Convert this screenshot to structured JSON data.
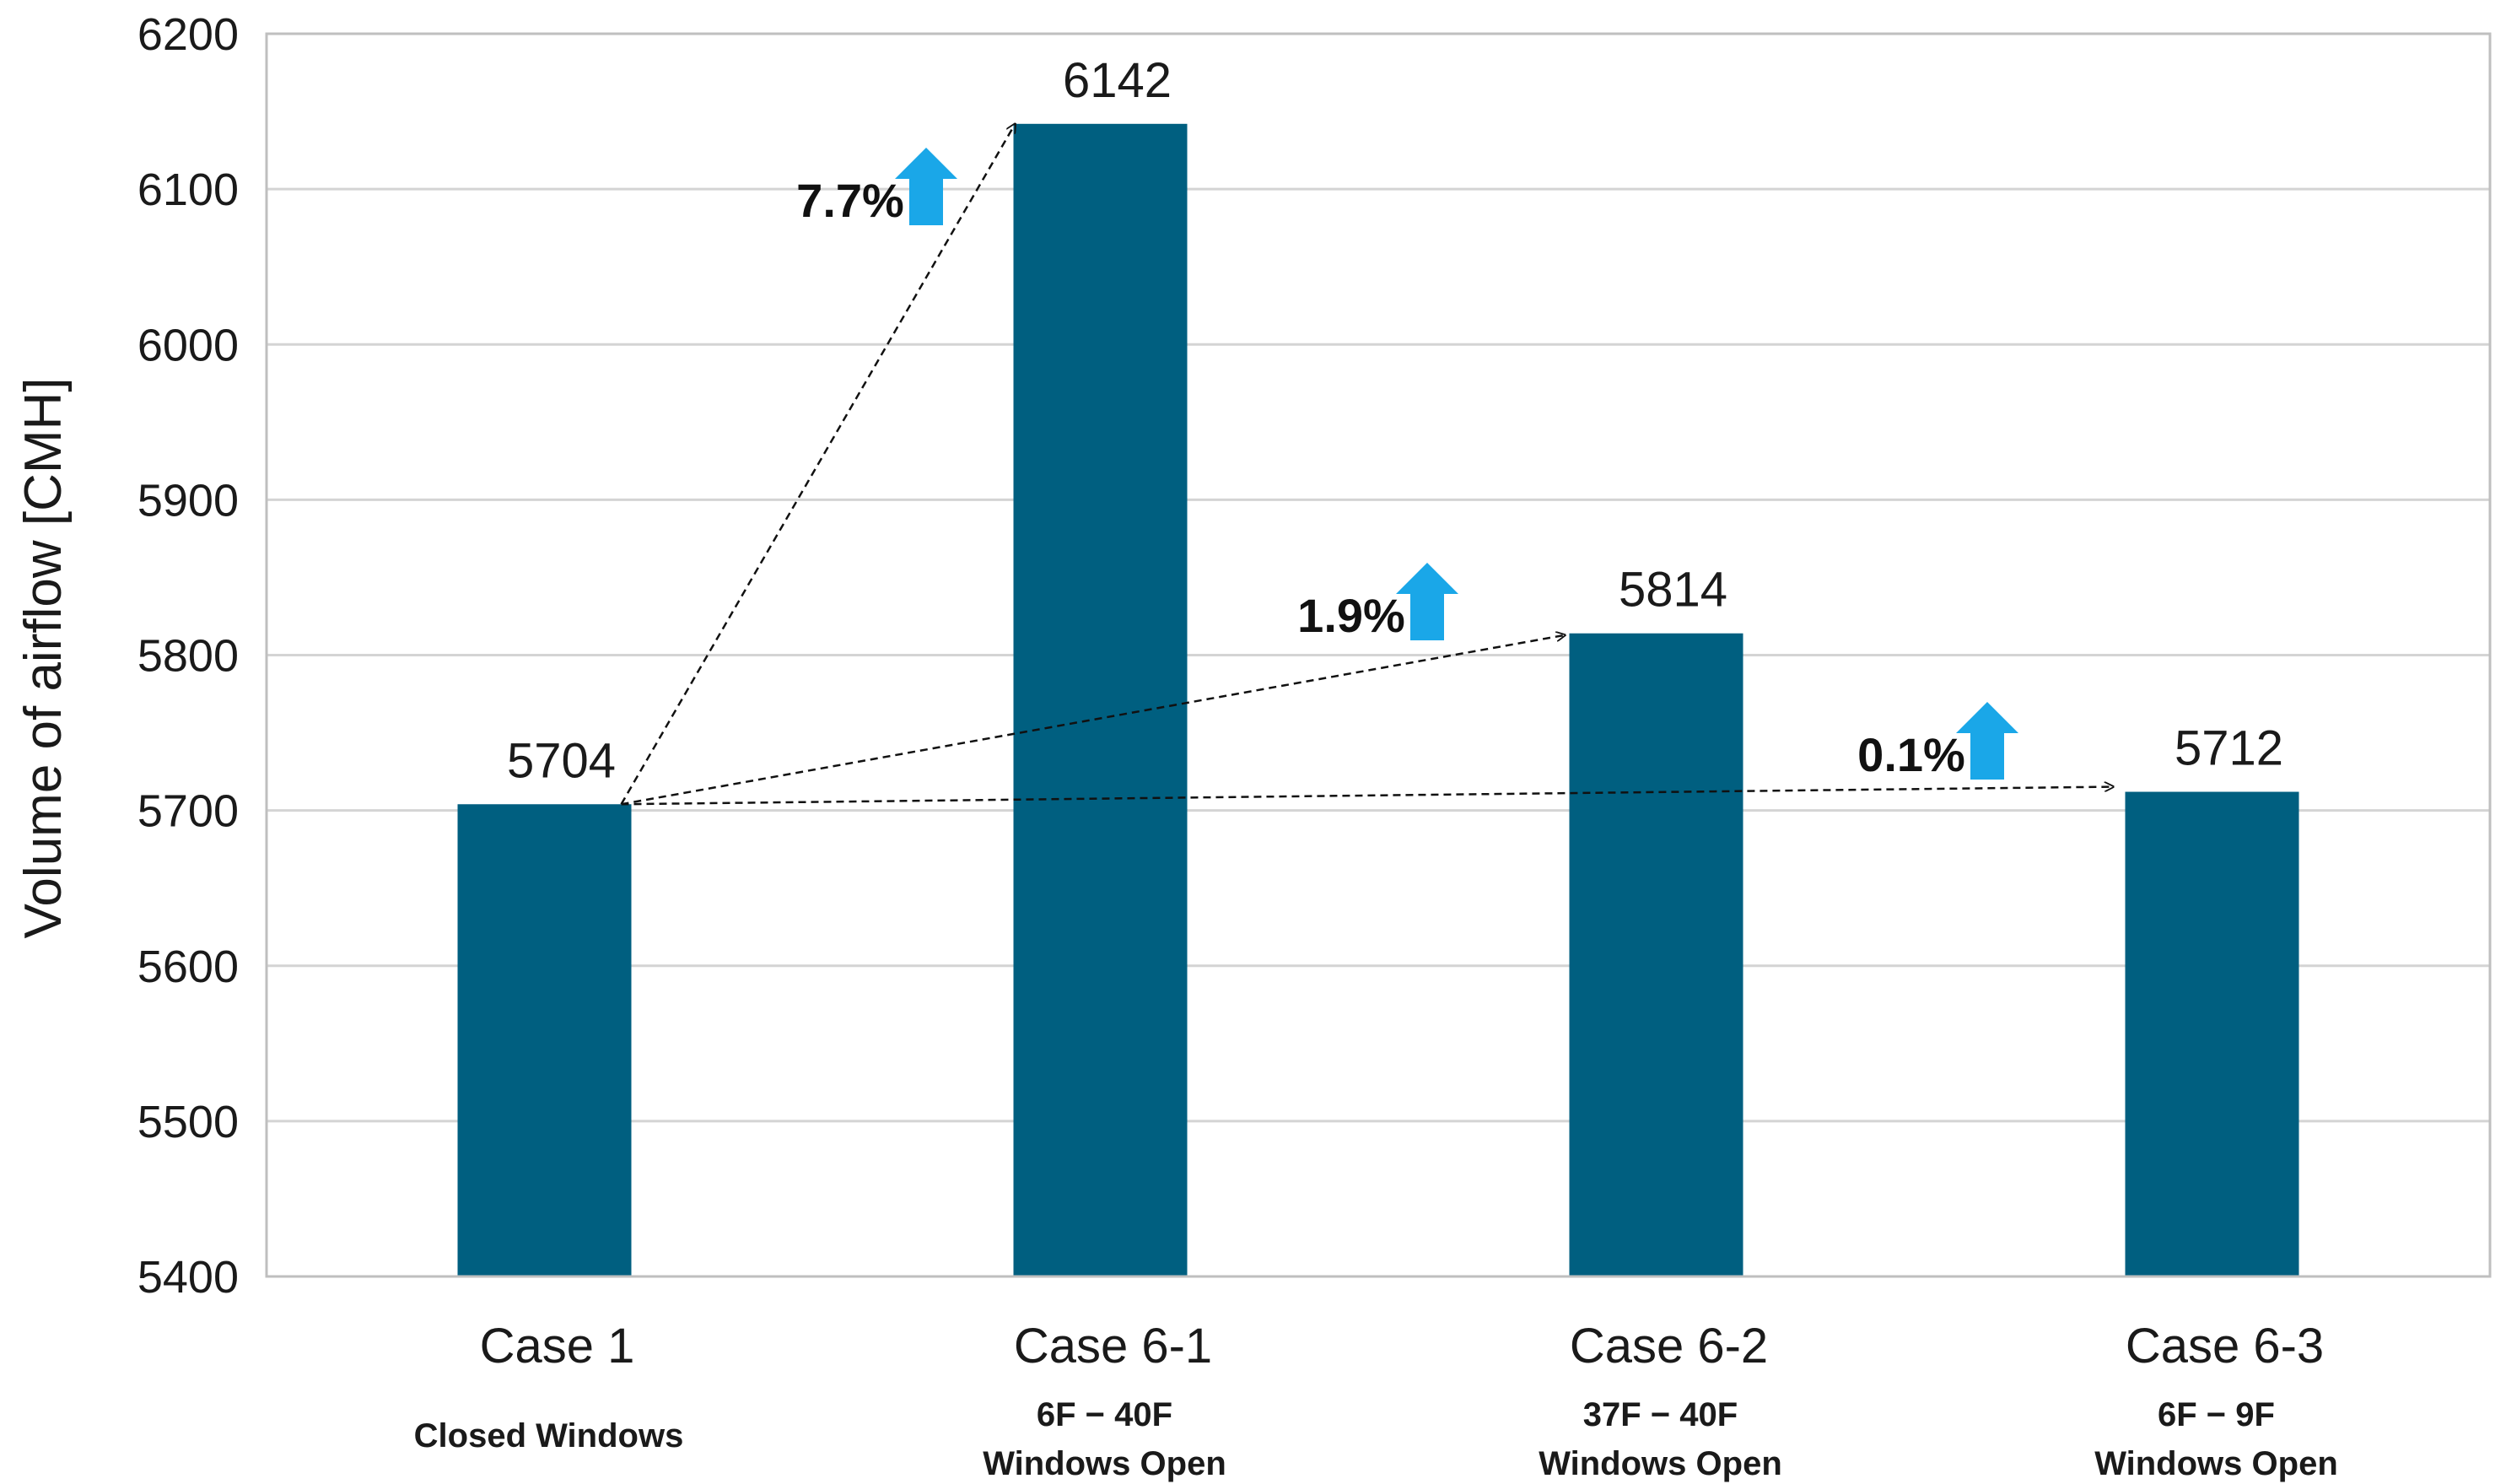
{
  "chart_data": {
    "type": "bar",
    "ylabel": "Volume of airflow [CMH]",
    "xlabel": "",
    "ylim": [
      5400,
      6200
    ],
    "yticks": [
      5400,
      5500,
      5600,
      5700,
      5800,
      5900,
      6000,
      6100,
      6200
    ],
    "grid": true,
    "categories": [
      "Case 1",
      "Case 6-1",
      "Case 6-2",
      "Case 6-3"
    ],
    "subtitles": [
      [
        "Closed Windows"
      ],
      [
        "6F − 40F",
        "Windows Open"
      ],
      [
        "37F − 40F",
        "Windows Open"
      ],
      [
        "6F − 9F",
        "Windows Open"
      ]
    ],
    "values": [
      5704,
      6142,
      5814,
      5712
    ],
    "data_labels": [
      "5704",
      "6142",
      "5814",
      "5712"
    ],
    "annotations": [
      {
        "from": 0,
        "to": 1,
        "text": "7.7%",
        "icon": "up-arrow-icon"
      },
      {
        "from": 0,
        "to": 2,
        "text": "1.9%",
        "icon": "up-arrow-icon"
      },
      {
        "from": 0,
        "to": 3,
        "text": "0.1%",
        "icon": "up-arrow-icon"
      }
    ],
    "colors": {
      "bar": "#005f80",
      "arrow_icon": "#1aa7e8",
      "grid": "#d4d4d4",
      "axis": "#bfbfbf"
    }
  }
}
